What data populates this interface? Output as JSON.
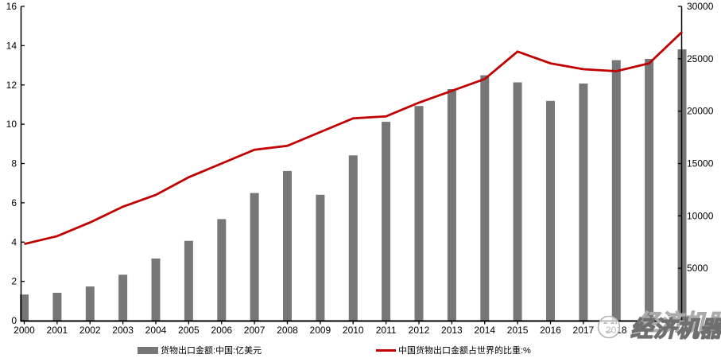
{
  "chart_data": {
    "type": "bar",
    "subtype": "combo-bar-line",
    "title": "",
    "categories": [
      "2000",
      "2001",
      "2002",
      "2003",
      "2004",
      "2005",
      "2006",
      "2007",
      "2008",
      "2009",
      "2010",
      "2011",
      "2012",
      "2013",
      "2014",
      "2015",
      "2016",
      "2017",
      "2018",
      "2019",
      "2020"
    ],
    "series": [
      {
        "name": "货物出口金额:中国:亿美元",
        "type": "bar",
        "yaxis": "right",
        "color": "#777777",
        "values": [
          2492,
          2661,
          3256,
          4382,
          5933,
          7620,
          9690,
          12180,
          14285,
          12016,
          15778,
          18983,
          20489,
          22100,
          23422,
          22749,
          20976,
          22633,
          24867,
          24990,
          25900
        ]
      },
      {
        "name": "中国货物出口金额占世界的比重:%",
        "type": "line",
        "yaxis": "left",
        "color": "#c00000",
        "values": [
          3.9,
          4.3,
          5.0,
          5.8,
          6.4,
          7.3,
          8.0,
          8.7,
          8.9,
          9.6,
          10.3,
          10.4,
          11.1,
          11.7,
          12.3,
          13.7,
          13.1,
          12.8,
          12.7,
          13.1,
          14.7
        ]
      }
    ],
    "left_axis": {
      "min": 0,
      "max": 16,
      "step": 2,
      "tick_labels": [
        "0",
        "2",
        "4",
        "6",
        "8",
        "10",
        "12",
        "14",
        "16"
      ]
    },
    "right_axis": {
      "min": 0,
      "max": 30000,
      "step": 5000,
      "tick_labels": [
        "0",
        "5000",
        "10000",
        "15000",
        "20000",
        "25000",
        "30000"
      ]
    },
    "grid": false,
    "legend_position": "bottom"
  },
  "legend": {
    "bar_label": "货物出口金额:中国:亿美元",
    "line_label": "中国货物出口金额占世界的比重:%"
  },
  "watermark": {
    "text": "经济机器"
  },
  "colors": {
    "bar": "#777777",
    "line": "#c00000",
    "axis": "#000000",
    "watermark_outline": "#8f8f8f"
  }
}
